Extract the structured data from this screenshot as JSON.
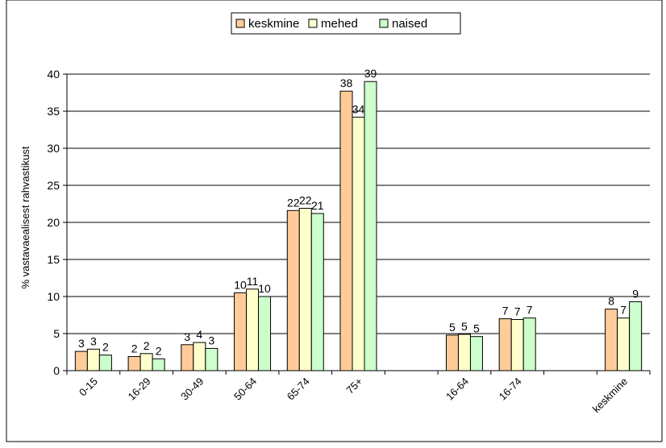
{
  "chart_data": {
    "type": "bar",
    "title": "",
    "xlabel": "",
    "ylabel": "% vastavaealisest rahvastikust",
    "ylim": [
      0,
      40
    ],
    "yticks": [
      0,
      5,
      10,
      15,
      20,
      25,
      30,
      35,
      40
    ],
    "grid": true,
    "legend_position": "top",
    "categories": [
      "0-15",
      "16-29",
      "30-49",
      "50-64",
      "65-74",
      "75+",
      "",
      "16-64",
      "16-74",
      "",
      "keskmine"
    ],
    "series": [
      {
        "name": "keskmine",
        "color": "#ffcc99",
        "values": [
          2.6,
          1.9,
          3.5,
          10.5,
          21.6,
          37.7,
          null,
          4.8,
          7.0,
          null,
          8.3
        ],
        "labels": [
          "3",
          "2",
          "3",
          "10",
          "22",
          "38",
          "",
          "5",
          "7",
          "",
          "8"
        ]
      },
      {
        "name": "mehed",
        "color": "#ffffcc",
        "values": [
          2.9,
          2.3,
          3.8,
          11.0,
          21.9,
          34.2,
          null,
          4.9,
          6.9,
          null,
          7.1
        ],
        "labels": [
          "3",
          "2",
          "4",
          "11",
          "22",
          "34",
          "",
          "5",
          "7",
          "",
          "7"
        ]
      },
      {
        "name": "naised",
        "color": "#ccffcc",
        "values": [
          2.1,
          1.6,
          3.0,
          10.0,
          21.2,
          39.0,
          null,
          4.6,
          7.1,
          null,
          9.3
        ],
        "labels": [
          "2",
          "2",
          "3",
          "10",
          "21",
          "39",
          "",
          "5",
          "7",
          "",
          "9"
        ]
      }
    ]
  }
}
